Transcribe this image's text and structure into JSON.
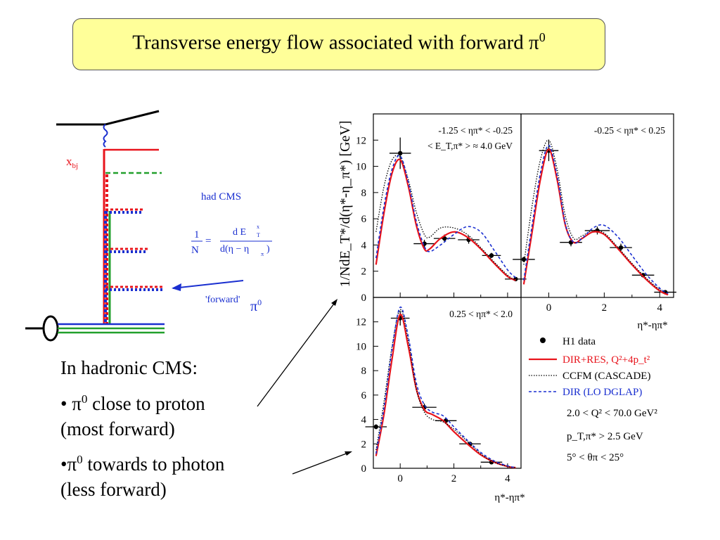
{
  "title": {
    "main": "Transverse energy flow associated with forward π",
    "sup": "0"
  },
  "diagram": {
    "xbj_label": "x",
    "xbj_sub": "bj",
    "had_cms_label": "had CMS",
    "formula_lhs_num": "1",
    "formula_lhs_den": "N",
    "formula_eq": "=",
    "formula_rhs_num": "d E",
    "formula_rhs_num_sup": "x",
    "formula_rhs_num_sub": "T",
    "formula_rhs_den": "d(η − η",
    "formula_rhs_den_sub": "π",
    "formula_rhs_den_end": ")",
    "forward_label": "'forward'",
    "forward_pi": "π",
    "forward_pi_sup": "0"
  },
  "bullets": {
    "heading": "In hadronic CMS:",
    "item1_pre": "• π",
    "item1_sup": "0",
    "item1_line1": "  close to proton",
    "item1_line2": "(most forward)",
    "item2_pre": "•π",
    "item2_sup": "0",
    "item2_line1": "  towards to photon",
    "item2_line2": "(less  forward)"
  },
  "chart_meta": {
    "ylabel": "1/NdE_T*/d(η*-η_π*) [GeV]",
    "xlabel": "η*-ηπ*",
    "colors": {
      "h1": "#000000",
      "dir_res": "#e8141c",
      "ccfm": "#000000",
      "dir": "#1a2fd0"
    }
  },
  "chart_data": [
    {
      "type": "line",
      "panel": "top-left",
      "annotation": [
        "-1.25 < ηπ* < -0.25",
        "< E_T,π* > ≈ 4.0 GeV"
      ],
      "xlim": [
        -1,
        4.5
      ],
      "ylim": [
        0,
        14
      ],
      "yticks": [
        0,
        2,
        4,
        6,
        8,
        10,
        12
      ],
      "series": [
        {
          "name": "H1 data",
          "style": "points",
          "x": [
            0.0,
            0.9,
            1.65,
            2.55,
            3.4,
            4.3
          ],
          "y": [
            11.0,
            4.1,
            4.5,
            4.4,
            3.2,
            1.4
          ],
          "xerr": [
            0.4,
            0.4,
            0.4,
            0.4,
            0.35,
            0.4
          ],
          "yerr": [
            1.2,
            0.3,
            0.3,
            0.3,
            0.2,
            0.1
          ]
        },
        {
          "name": "DIR+RES, Q²+4p_t²",
          "style": "solid",
          "x": [
            -0.9,
            -0.6,
            -0.3,
            0.0,
            0.3,
            0.6,
            0.9,
            1.1,
            1.5,
            2.0,
            2.5,
            3.0,
            3.5,
            4.0,
            4.3
          ],
          "y": [
            2.5,
            6.5,
            9.5,
            10.5,
            8.5,
            5.5,
            3.7,
            3.7,
            4.5,
            5.0,
            4.6,
            3.7,
            2.6,
            1.6,
            1.3
          ]
        },
        {
          "name": "CCFM (CASCADE)",
          "style": "dotted",
          "x": [
            -0.9,
            -0.6,
            -0.3,
            0.0,
            0.3,
            0.6,
            0.9,
            1.1,
            1.5,
            2.0,
            2.5,
            3.0,
            3.5,
            4.0,
            4.3
          ],
          "y": [
            5.0,
            8.5,
            10.5,
            10.7,
            9.0,
            6.5,
            4.8,
            4.6,
            5.3,
            5.3,
            4.8,
            3.8,
            2.7,
            1.7,
            1.3
          ]
        },
        {
          "name": "DIR (LO DGLAP)",
          "style": "dashed",
          "x": [
            -0.9,
            -0.6,
            -0.3,
            0.0,
            0.3,
            0.6,
            0.9,
            1.1,
            1.5,
            2.0,
            2.5,
            3.0,
            3.5,
            4.0,
            4.3
          ],
          "y": [
            3.0,
            7.0,
            9.8,
            10.8,
            8.8,
            5.8,
            3.9,
            3.5,
            4.0,
            4.8,
            5.4,
            5.0,
            3.6,
            2.1,
            1.5
          ]
        }
      ]
    },
    {
      "type": "line",
      "panel": "top-right",
      "annotation": [
        "-0.25 < ηπ* < 0.25"
      ],
      "xlim": [
        -1,
        4.5
      ],
      "ylim": [
        0,
        14
      ],
      "xticks": [
        0,
        2,
        4
      ],
      "series": [
        {
          "name": "H1 data",
          "style": "points",
          "x": [
            -0.9,
            0.0,
            0.8,
            1.75,
            2.6,
            3.4,
            4.2
          ],
          "y": [
            2.9,
            11.2,
            4.2,
            5.1,
            3.8,
            1.7,
            0.4
          ],
          "xerr": [
            0.4,
            0.35,
            0.4,
            0.45,
            0.4,
            0.4,
            0.4
          ],
          "yerr": [
            0.2,
            0.8,
            0.3,
            0.3,
            0.3,
            0.1,
            0.05
          ]
        },
        {
          "name": "DIR+RES, Q²+4p_t²",
          "style": "solid",
          "x": [
            -0.9,
            -0.6,
            -0.3,
            0.0,
            0.3,
            0.6,
            0.9,
            1.2,
            1.6,
            2.0,
            2.5,
            3.0,
            3.5,
            4.0,
            4.3
          ],
          "y": [
            1.0,
            5.0,
            9.0,
            11.3,
            9.0,
            5.5,
            4.2,
            4.5,
            5.0,
            4.8,
            3.7,
            2.5,
            1.4,
            0.5,
            0.2
          ]
        },
        {
          "name": "CCFM (CASCADE)",
          "style": "dotted",
          "x": [
            -0.9,
            -0.6,
            -0.3,
            0.0,
            0.3,
            0.6,
            0.9,
            1.2,
            1.6,
            2.0,
            2.5,
            3.0,
            3.5,
            4.0,
            4.3
          ],
          "y": [
            2.5,
            7.0,
            10.5,
            12.0,
            9.8,
            6.2,
            4.5,
            4.7,
            5.1,
            4.9,
            3.8,
            2.6,
            1.5,
            0.6,
            0.3
          ]
        },
        {
          "name": "DIR (LO DGLAP)",
          "style": "dashed",
          "x": [
            -0.9,
            -0.6,
            -0.3,
            0.0,
            0.3,
            0.6,
            0.9,
            1.2,
            1.6,
            2.0,
            2.5,
            3.0,
            3.5,
            4.0,
            4.3
          ],
          "y": [
            1.3,
            5.5,
            9.5,
            11.6,
            9.3,
            5.6,
            4.2,
            4.5,
            5.3,
            5.5,
            4.6,
            3.2,
            1.8,
            0.7,
            0.3
          ]
        }
      ]
    },
    {
      "type": "line",
      "panel": "bottom-left",
      "annotation": [
        "0.25 < ηπ* < 2.0"
      ],
      "xlim": [
        -1,
        4.5
      ],
      "ylim": [
        0,
        14
      ],
      "yticks": [
        0,
        2,
        4,
        6,
        8,
        10,
        12
      ],
      "xticks": [
        0,
        2,
        4
      ],
      "series": [
        {
          "name": "H1 data",
          "style": "points",
          "x": [
            -0.9,
            0.0,
            0.9,
            1.7,
            2.6,
            3.4
          ],
          "y": [
            3.4,
            12.3,
            5.0,
            3.9,
            2.0,
            0.5
          ],
          "xerr": [
            0.4,
            0.35,
            0.45,
            0.4,
            0.4,
            0.4
          ],
          "yerr": [
            0.2,
            0.6,
            0.3,
            0.2,
            0.1,
            0.05
          ]
        },
        {
          "name": "DIR+RES, Q²+4p_t²",
          "style": "solid",
          "x": [
            -0.9,
            -0.6,
            -0.3,
            0.0,
            0.3,
            0.6,
            0.9,
            1.2,
            1.6,
            2.0,
            2.5,
            3.0,
            3.5,
            4.0,
            4.3
          ],
          "y": [
            1.0,
            4.5,
            9.0,
            12.6,
            10.0,
            6.5,
            4.8,
            4.4,
            3.9,
            3.0,
            2.0,
            1.1,
            0.5,
            0.15,
            0.05
          ]
        },
        {
          "name": "CCFM (CASCADE)",
          "style": "dotted",
          "x": [
            -0.9,
            -0.6,
            -0.3,
            0.0,
            0.3,
            0.6,
            0.9,
            1.2,
            1.6,
            2.0,
            2.5,
            3.0,
            3.5,
            4.0,
            4.3
          ],
          "y": [
            1.5,
            5.5,
            10.0,
            13.0,
            10.5,
            6.5,
            4.6,
            4.0,
            3.8,
            3.2,
            2.2,
            1.2,
            0.5,
            0.15,
            0.05
          ]
        },
        {
          "name": "DIR (LO DGLAP)",
          "style": "dashed",
          "x": [
            -0.9,
            -0.6,
            -0.3,
            0.0,
            0.3,
            0.6,
            0.9,
            1.2,
            1.6,
            2.0,
            2.5,
            3.0,
            3.5,
            4.0,
            4.3
          ],
          "y": [
            1.2,
            5.0,
            9.8,
            13.2,
            10.8,
            7.0,
            5.2,
            4.6,
            4.3,
            3.4,
            2.3,
            1.3,
            0.6,
            0.2,
            0.05
          ]
        }
      ]
    }
  ],
  "legend": {
    "h1": "H1 data",
    "dir_res": "DIR+RES, Q²+4p_t²",
    "ccfm": "CCFM (CASCADE)",
    "dir": "DIR (LO DGLAP)",
    "cut1": "2.0 < Q² < 70.0 GeV²",
    "cut2": "p_T,π* > 2.5 GeV",
    "cut3": "5° < θπ < 25°"
  }
}
